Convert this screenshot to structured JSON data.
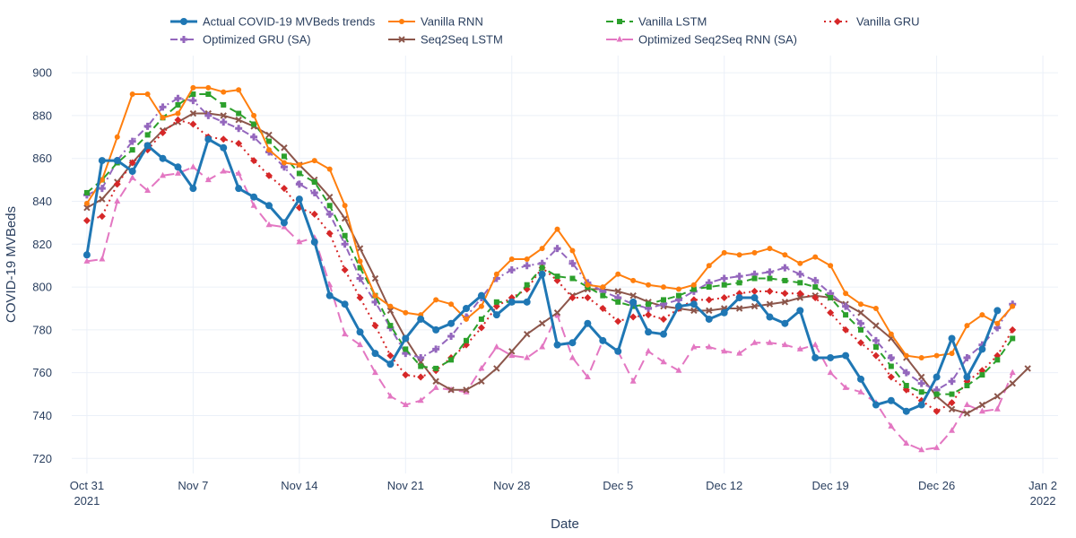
{
  "chart_data": {
    "type": "line",
    "xlabel": "Date",
    "ylabel": "COVID-19 MVBeds",
    "ylim": [
      713,
      908
    ],
    "xlim": [
      "2021-10-30",
      "2022-01-03"
    ],
    "x_start": "2021-10-31",
    "x_step_days": 1,
    "y_ticks": [
      720,
      740,
      760,
      780,
      800,
      820,
      840,
      860,
      880,
      900
    ],
    "x_ticks": [
      {
        "date": "2021-10-31",
        "line1": "Oct 31",
        "line2": "2021"
      },
      {
        "date": "2021-11-07",
        "line1": "Nov 7",
        "line2": ""
      },
      {
        "date": "2021-11-14",
        "line1": "Nov 14",
        "line2": ""
      },
      {
        "date": "2021-11-21",
        "line1": "Nov 21",
        "line2": ""
      },
      {
        "date": "2021-11-28",
        "line1": "Nov 28",
        "line2": ""
      },
      {
        "date": "2021-12-05",
        "line1": "Dec 5",
        "line2": ""
      },
      {
        "date": "2021-12-12",
        "line1": "Dec 12",
        "line2": ""
      },
      {
        "date": "2021-12-19",
        "line1": "Dec 19",
        "line2": ""
      },
      {
        "date": "2021-12-26",
        "line1": "Dec 26",
        "line2": ""
      },
      {
        "date": "2022-01-02",
        "line1": "Jan 2",
        "line2": "2022"
      }
    ],
    "grid": true,
    "legend_position": "top",
    "series": [
      {
        "name": "Actual COVID-19 MVBeds trends",
        "color": "#1f77b4",
        "dash": "solid",
        "marker": "circle",
        "width": 3,
        "values": [
          815,
          859,
          859,
          854,
          866,
          860,
          856,
          846,
          869,
          865,
          846,
          842,
          838,
          830,
          841,
          821,
          796,
          792,
          779,
          769,
          764,
          776,
          785,
          780,
          783,
          790,
          796,
          787,
          793,
          793,
          806,
          773,
          774,
          783,
          775,
          770,
          793,
          779,
          778,
          791,
          792,
          785,
          788,
          795,
          795,
          786,
          783,
          789,
          767,
          767,
          768,
          757,
          745,
          747,
          742,
          745,
          758,
          776,
          758,
          771,
          789
        ]
      },
      {
        "name": "Vanilla RNN",
        "color": "#ff7f0e",
        "dash": "solid",
        "marker": "circle-small",
        "width": 2,
        "values": [
          839,
          850,
          870,
          890,
          890,
          879,
          881,
          893,
          893,
          891,
          892,
          880,
          864,
          858,
          857,
          859,
          855,
          838,
          812,
          796,
          791,
          788,
          787,
          794,
          792,
          785,
          791,
          806,
          813,
          813,
          818,
          827,
          817,
          801,
          800,
          806,
          803,
          801,
          800,
          799,
          801,
          810,
          816,
          815,
          816,
          818,
          815,
          811,
          814,
          810,
          797,
          792,
          790,
          778,
          768,
          767,
          768,
          769,
          782,
          787,
          783,
          791
        ]
      },
      {
        "name": "Vanilla LSTM",
        "color": "#2ca02c",
        "dash": "dash",
        "marker": "square",
        "width": 2,
        "values": [
          844,
          850,
          858,
          864,
          871,
          879,
          885,
          890,
          890,
          885,
          881,
          876,
          868,
          861,
          853,
          849,
          838,
          824,
          809,
          796,
          782,
          771,
          763,
          762,
          766,
          775,
          785,
          793,
          793,
          801,
          809,
          805,
          804,
          800,
          796,
          793,
          791,
          792,
          794,
          796,
          799,
          800,
          801,
          802,
          804,
          804,
          803,
          802,
          800,
          795,
          787,
          780,
          772,
          763,
          754,
          751,
          750,
          750,
          754,
          759,
          766,
          776
        ]
      },
      {
        "name": "Vanilla GRU",
        "color": "#d62728",
        "dash": "dot",
        "marker": "diamond",
        "width": 2,
        "values": [
          831,
          833,
          848,
          858,
          864,
          872,
          878,
          876,
          870,
          869,
          867,
          859,
          852,
          846,
          837,
          834,
          825,
          808,
          795,
          782,
          768,
          759,
          758,
          761,
          767,
          773,
          781,
          791,
          795,
          799,
          809,
          803,
          795,
          795,
          790,
          784,
          786,
          787,
          785,
          790,
          794,
          794,
          795,
          797,
          798,
          798,
          797,
          797,
          795,
          788,
          780,
          774,
          768,
          758,
          752,
          747,
          742,
          746,
          756,
          761,
          768,
          780
        ]
      },
      {
        "name": "Optimized GRU (SA)",
        "color": "#9467bd",
        "dash": "dashdot",
        "marker": "cross",
        "width": 2,
        "values": [
          843,
          846,
          859,
          868,
          875,
          884,
          888,
          887,
          880,
          877,
          874,
          870,
          863,
          856,
          848,
          844,
          834,
          820,
          804,
          793,
          781,
          769,
          767,
          771,
          777,
          786,
          795,
          804,
          808,
          810,
          811,
          818,
          811,
          802,
          798,
          795,
          792,
          790,
          792,
          794,
          798,
          802,
          804,
          805,
          806,
          807,
          809,
          806,
          803,
          797,
          791,
          783,
          775,
          767,
          760,
          755,
          752,
          756,
          767,
          773,
          781,
          792
        ]
      },
      {
        "name": "Seq2Seq LSTM",
        "color": "#8c564b",
        "dash": "solid",
        "marker": "x",
        "width": 2,
        "values": [
          837,
          841,
          849,
          858,
          866,
          873,
          877,
          881,
          881,
          880,
          878,
          875,
          871,
          865,
          857,
          850,
          842,
          832,
          818,
          804,
          789,
          776,
          765,
          756,
          752,
          752,
          756,
          762,
          770,
          778,
          783,
          788,
          796,
          799,
          799,
          798,
          796,
          793,
          791,
          790,
          789,
          789,
          790,
          790,
          791,
          792,
          793,
          795,
          796,
          795,
          792,
          788,
          782,
          776,
          767,
          758,
          749,
          743,
          741,
          745,
          749,
          755,
          762
        ]
      },
      {
        "name": "Optimized Seq2Seq RNN (SA)",
        "color": "#e377c2",
        "dash": "longdash",
        "marker": "triangle",
        "width": 2,
        "values": [
          812,
          813,
          840,
          851,
          845,
          852,
          853,
          856,
          850,
          854,
          853,
          838,
          829,
          828,
          821,
          823,
          801,
          778,
          773,
          760,
          749,
          745,
          747,
          753,
          752,
          751,
          762,
          772,
          768,
          767,
          772,
          787,
          767,
          758,
          775,
          770,
          756,
          770,
          765,
          761,
          772,
          772,
          770,
          769,
          774,
          774,
          773,
          771,
          773,
          760,
          753,
          751,
          746,
          735,
          727,
          724,
          725,
          733,
          745,
          742,
          743,
          760
        ]
      }
    ]
  }
}
